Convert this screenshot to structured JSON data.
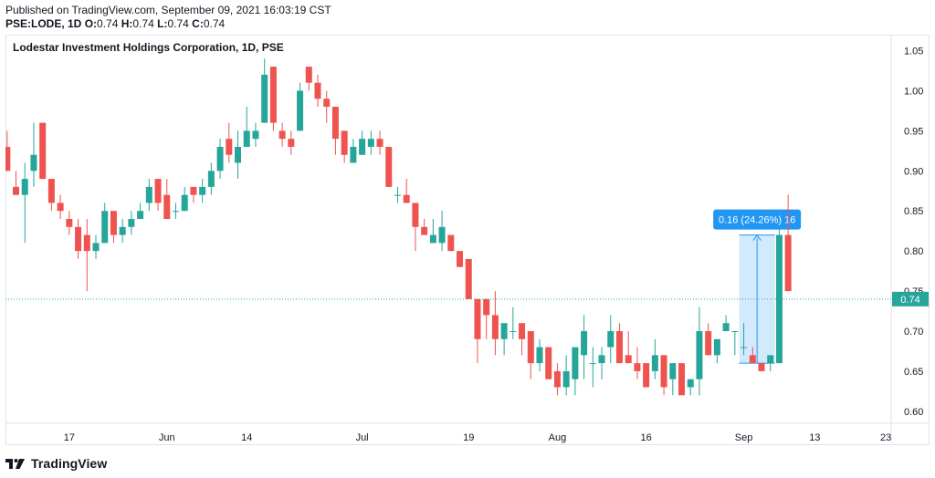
{
  "header": {
    "published": "Published on TradingView.com, September 09, 2021 16:03:19 CST",
    "symbol": "PSE:LODE, 1D",
    "o_label": "O:",
    "o_value": "0.74",
    "h_label": "H:",
    "h_value": "0.74",
    "l_label": "L:",
    "l_value": "0.74",
    "c_label": "C:",
    "c_value": "0.74"
  },
  "footer": {
    "brand": "TradingView",
    "logo_icon": "tradingview-logo-icon"
  },
  "colors": {
    "up": "#26a69a",
    "down": "#ef5350",
    "price_line": "#26a69a",
    "measure": "#2196f3"
  },
  "chart_data": {
    "type": "candlestick",
    "title": "Lodestar Investment Holdings Corporation, 1D, PSE",
    "ylim": [
      0.585,
      1.07
    ],
    "y_ticks": [
      "1.05",
      "1.00",
      "0.95",
      "0.90",
      "0.85",
      "0.80",
      "0.75",
      "0.70",
      "0.65",
      "0.60"
    ],
    "x_ticks": [
      {
        "label": "17",
        "bar": 7
      },
      {
        "label": "Jun",
        "bar": 18
      },
      {
        "label": "14",
        "bar": 27
      },
      {
        "label": "Jul",
        "bar": 40
      },
      {
        "label": "19",
        "bar": 52
      },
      {
        "label": "Aug",
        "bar": 62
      },
      {
        "label": "16",
        "bar": 72
      },
      {
        "label": "Sep",
        "bar": 83
      },
      {
        "label": "13",
        "bar": 91
      },
      {
        "label": "23",
        "bar": 99
      }
    ],
    "last_price": {
      "value": 0.74,
      "label": "0.74"
    },
    "measure": {
      "label": "0.16 (24.26%) 16",
      "from_bar": 83,
      "to_bar": 86,
      "low": 0.66,
      "high": 0.82
    },
    "candles": [
      [
        0.93,
        0.95,
        0.9,
        0.9
      ],
      [
        0.88,
        0.9,
        0.87,
        0.87
      ],
      [
        0.87,
        0.91,
        0.81,
        0.89
      ],
      [
        0.9,
        0.96,
        0.88,
        0.92
      ],
      [
        0.96,
        0.96,
        0.89,
        0.89
      ],
      [
        0.89,
        0.89,
        0.85,
        0.86
      ],
      [
        0.86,
        0.87,
        0.84,
        0.85
      ],
      [
        0.84,
        0.85,
        0.82,
        0.83
      ],
      [
        0.83,
        0.84,
        0.79,
        0.8
      ],
      [
        0.82,
        0.84,
        0.75,
        0.8
      ],
      [
        0.8,
        0.82,
        0.79,
        0.81
      ],
      [
        0.81,
        0.86,
        0.81,
        0.85
      ],
      [
        0.85,
        0.85,
        0.81,
        0.82
      ],
      [
        0.82,
        0.84,
        0.81,
        0.83
      ],
      [
        0.83,
        0.85,
        0.82,
        0.84
      ],
      [
        0.84,
        0.86,
        0.84,
        0.85
      ],
      [
        0.86,
        0.89,
        0.85,
        0.88
      ],
      [
        0.89,
        0.89,
        0.85,
        0.86
      ],
      [
        0.87,
        0.89,
        0.84,
        0.84
      ],
      [
        0.85,
        0.86,
        0.84,
        0.85
      ],
      [
        0.85,
        0.88,
        0.85,
        0.87
      ],
      [
        0.88,
        0.88,
        0.86,
        0.87
      ],
      [
        0.87,
        0.89,
        0.86,
        0.88
      ],
      [
        0.88,
        0.91,
        0.87,
        0.9
      ],
      [
        0.9,
        0.94,
        0.89,
        0.93
      ],
      [
        0.94,
        0.96,
        0.91,
        0.92
      ],
      [
        0.91,
        0.95,
        0.89,
        0.93
      ],
      [
        0.93,
        0.98,
        0.93,
        0.95
      ],
      [
        0.94,
        0.96,
        0.93,
        0.95
      ],
      [
        0.96,
        1.04,
        0.96,
        1.02
      ],
      [
        1.03,
        1.03,
        0.95,
        0.96
      ],
      [
        0.95,
        0.96,
        0.93,
        0.94
      ],
      [
        0.94,
        0.95,
        0.92,
        0.93
      ],
      [
        0.95,
        1.01,
        0.95,
        1.0
      ],
      [
        1.03,
        1.03,
        1.0,
        1.01
      ],
      [
        1.01,
        1.02,
        0.98,
        0.99
      ],
      [
        0.99,
        1.0,
        0.96,
        0.98
      ],
      [
        0.98,
        0.98,
        0.92,
        0.94
      ],
      [
        0.95,
        0.95,
        0.91,
        0.92
      ],
      [
        0.91,
        0.94,
        0.91,
        0.93
      ],
      [
        0.92,
        0.95,
        0.92,
        0.94
      ],
      [
        0.93,
        0.95,
        0.92,
        0.94
      ],
      [
        0.94,
        0.95,
        0.92,
        0.93
      ],
      [
        0.93,
        0.93,
        0.88,
        0.88
      ],
      [
        0.87,
        0.88,
        0.86,
        0.87
      ],
      [
        0.87,
        0.89,
        0.86,
        0.86
      ],
      [
        0.86,
        0.86,
        0.8,
        0.83
      ],
      [
        0.83,
        0.84,
        0.82,
        0.82
      ],
      [
        0.81,
        0.84,
        0.81,
        0.82
      ],
      [
        0.81,
        0.85,
        0.8,
        0.83
      ],
      [
        0.82,
        0.82,
        0.8,
        0.8
      ],
      [
        0.8,
        0.8,
        0.78,
        0.78
      ],
      [
        0.79,
        0.79,
        0.74,
        0.74
      ],
      [
        0.74,
        0.74,
        0.66,
        0.69
      ],
      [
        0.74,
        0.74,
        0.69,
        0.72
      ],
      [
        0.72,
        0.75,
        0.67,
        0.69
      ],
      [
        0.69,
        0.71,
        0.67,
        0.71
      ],
      [
        0.7,
        0.73,
        0.69,
        0.7
      ],
      [
        0.71,
        0.71,
        0.67,
        0.69
      ],
      [
        0.7,
        0.7,
        0.64,
        0.66
      ],
      [
        0.66,
        0.69,
        0.65,
        0.68
      ],
      [
        0.68,
        0.68,
        0.64,
        0.64
      ],
      [
        0.65,
        0.66,
        0.62,
        0.63
      ],
      [
        0.63,
        0.67,
        0.62,
        0.65
      ],
      [
        0.64,
        0.68,
        0.62,
        0.68
      ],
      [
        0.67,
        0.72,
        0.64,
        0.7
      ],
      [
        0.66,
        0.68,
        0.63,
        0.66
      ],
      [
        0.66,
        0.68,
        0.64,
        0.67
      ],
      [
        0.68,
        0.72,
        0.66,
        0.7
      ],
      [
        0.7,
        0.71,
        0.66,
        0.66
      ],
      [
        0.67,
        0.7,
        0.66,
        0.66
      ],
      [
        0.66,
        0.68,
        0.64,
        0.65
      ],
      [
        0.66,
        0.66,
        0.63,
        0.63
      ],
      [
        0.65,
        0.69,
        0.64,
        0.67
      ],
      [
        0.67,
        0.67,
        0.62,
        0.63
      ],
      [
        0.64,
        0.66,
        0.62,
        0.66
      ],
      [
        0.66,
        0.66,
        0.62,
        0.62
      ],
      [
        0.63,
        0.64,
        0.62,
        0.64
      ],
      [
        0.64,
        0.73,
        0.62,
        0.7
      ],
      [
        0.7,
        0.71,
        0.67,
        0.67
      ],
      [
        0.67,
        0.69,
        0.66,
        0.69
      ],
      [
        0.7,
        0.72,
        0.7,
        0.71
      ],
      [
        0.7,
        0.7,
        0.67,
        0.7
      ],
      [
        0.68,
        0.71,
        0.67,
        0.68
      ],
      [
        0.67,
        0.68,
        0.66,
        0.66
      ],
      [
        0.66,
        0.66,
        0.65,
        0.65
      ],
      [
        0.66,
        0.67,
        0.65,
        0.67
      ],
      [
        0.66,
        0.83,
        0.66,
        0.82
      ],
      [
        0.82,
        0.87,
        0.75,
        0.75
      ]
    ]
  }
}
